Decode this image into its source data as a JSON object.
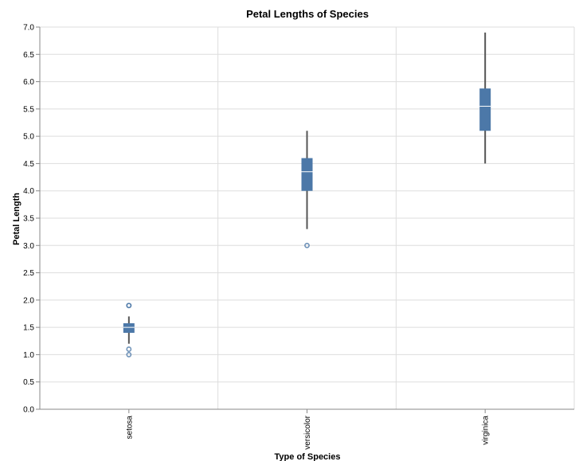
{
  "chart_data": {
    "type": "boxplot",
    "title": "Petal Lengths of Species",
    "xlabel": "Type of Species",
    "ylabel": "Petal Length",
    "ylim": [
      0,
      7
    ],
    "yticks": [
      "0.0",
      "0.5",
      "1.0",
      "1.5",
      "2.0",
      "2.5",
      "3.0",
      "3.5",
      "4.0",
      "4.5",
      "5.0",
      "5.5",
      "6.0",
      "6.5",
      "7.0"
    ],
    "categories": [
      "setosa",
      "versicolor",
      "virginica"
    ],
    "grid": true,
    "colors": {
      "box": "#4c78a8",
      "median": "#ffffff",
      "whisker": "#555555",
      "outlier": "#4c78a8",
      "grid": "#dddddd",
      "axis": "#888888"
    },
    "series": [
      {
        "category": "setosa",
        "min": 1.2,
        "q1": 1.4,
        "median": 1.5,
        "q3": 1.575,
        "max": 1.7,
        "outliers": [
          1.0,
          1.1,
          1.9,
          1.9
        ]
      },
      {
        "category": "versicolor",
        "min": 3.3,
        "q1": 4.0,
        "median": 4.35,
        "q3": 4.6,
        "max": 5.1,
        "outliers": [
          3.0
        ]
      },
      {
        "category": "virginica",
        "min": 4.5,
        "q1": 5.1,
        "median": 5.55,
        "q3": 5.875,
        "max": 6.9,
        "outliers": []
      }
    ]
  }
}
